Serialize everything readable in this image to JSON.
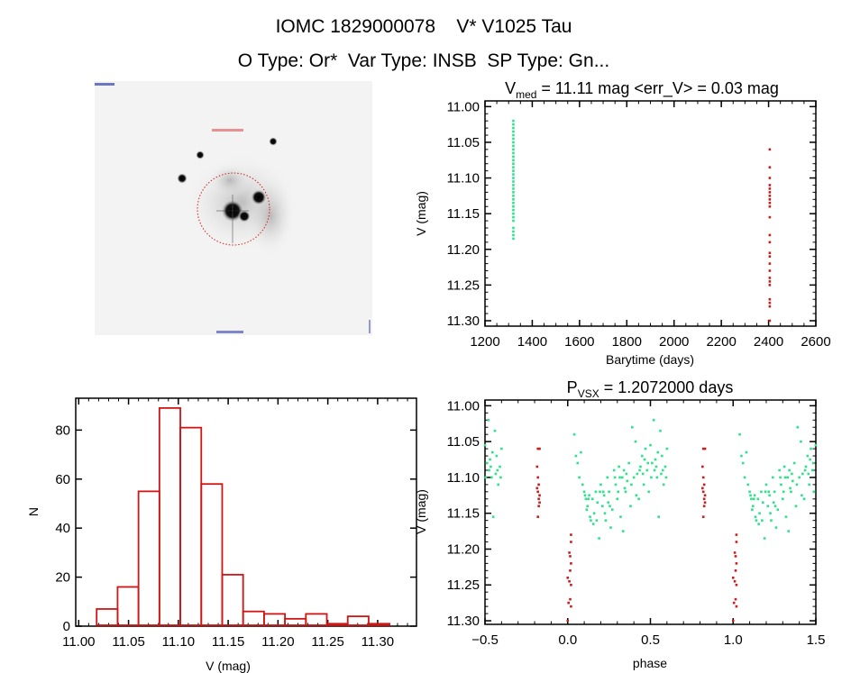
{
  "header": {
    "title": "IOMC 1829000078    V* V1025 Tau",
    "subtitle": "O Type: Or*  Var Type: INSB  SP Type: Gn..."
  },
  "colors": {
    "series_a": "#2de38a",
    "series_b": "#c81e1e",
    "histogram": "#d01515",
    "axes": "#000000"
  },
  "chart_data": [
    {
      "type": "scatter",
      "title_main": "V",
      "title_sub": "med",
      "title_rest": " = 11.11 mag <err_V> = 0.03 mag",
      "xlabel": "Barytime (days)",
      "ylabel": "V (mag)",
      "xlim": [
        1200,
        2600
      ],
      "ylim": [
        11.3,
        11.0
      ],
      "y_inverted": true,
      "xticks": [
        "1200",
        "1400",
        "1600",
        "1800",
        "2000",
        "2200",
        "2400",
        "2600"
      ],
      "yticks": [
        "11.00",
        "11.05",
        "11.10",
        "11.15",
        "11.20",
        "11.25",
        "11.30"
      ],
      "series": [
        {
          "color": "#2de38a",
          "barytime": 1320,
          "mag": [
            11.02,
            11.025,
            11.03,
            11.035,
            11.04,
            11.045,
            11.05,
            11.055,
            11.06,
            11.065,
            11.07,
            11.075,
            11.08,
            11.085,
            11.09,
            11.095,
            11.1,
            11.105,
            11.11,
            11.115,
            11.12,
            11.125,
            11.13,
            11.135,
            11.14,
            11.145,
            11.15,
            11.155,
            11.16,
            11.17,
            11.175,
            11.18,
            11.185
          ]
        },
        {
          "color": "#c81e1e",
          "barytime": 2405,
          "mag": [
            11.06,
            11.085,
            11.1,
            11.11,
            11.115,
            11.12,
            11.125,
            11.13,
            11.135,
            11.14,
            11.155,
            11.18,
            11.19,
            11.205,
            11.21,
            11.22,
            11.23,
            11.24,
            11.245,
            11.25,
            11.27,
            11.275,
            11.28,
            11.3
          ]
        }
      ]
    },
    {
      "type": "bar",
      "style": "histogram-outline",
      "xlabel": "V (mag)",
      "ylabel": "N",
      "xlim": [
        10.997,
        11.339
      ],
      "ylim": [
        0,
        93
      ],
      "xticks": [
        "11.00",
        "11.05",
        "11.10",
        "11.15",
        "11.20",
        "11.25",
        "11.30"
      ],
      "yticks": [
        "0",
        "20",
        "40",
        "60",
        "80"
      ],
      "bin_edges": [
        11.018,
        11.039,
        11.06,
        11.081,
        11.102,
        11.123,
        11.144,
        11.165,
        11.186,
        11.207,
        11.228,
        11.249,
        11.27,
        11.291,
        11.312
      ],
      "values": [
        7,
        16,
        55,
        89,
        81,
        58,
        21,
        6,
        5,
        3,
        5,
        1,
        4,
        1
      ]
    },
    {
      "type": "scatter",
      "title_main": "P",
      "title_sub": "VSX",
      "title_rest": " = 1.2072000 days",
      "xlabel": "phase",
      "ylabel": "V (mag)",
      "xlim": [
        -0.5,
        1.5
      ],
      "ylim": [
        11.3,
        11.0
      ],
      "y_inverted": true,
      "xticks": [
        "-0.5",
        "0.0",
        "0.5",
        "1.0",
        "1.5"
      ],
      "yticks": [
        "11.00",
        "11.05",
        "11.10",
        "11.15",
        "11.20",
        "11.25",
        "11.30"
      ],
      "series": [
        {
          "color": "#2de38a",
          "points": [
            [
              0.04,
              11.04
            ],
            [
              0.05,
              11.07
            ],
            [
              0.06,
              11.08
            ],
            [
              0.07,
              11.1
            ],
            [
              0.08,
              11.065
            ],
            [
              0.09,
              11.11
            ],
            [
              0.1,
              11.12
            ],
            [
              0.11,
              11.13
            ],
            [
              0.12,
              11.14
            ],
            [
              0.13,
              11.125
            ],
            [
              0.14,
              11.16
            ],
            [
              0.15,
              11.13
            ],
            [
              0.16,
              11.15
            ],
            [
              0.17,
              11.12
            ],
            [
              0.18,
              11.135
            ],
            [
              0.19,
              11.185
            ],
            [
              0.2,
              11.11
            ],
            [
              0.21,
              11.14
            ],
            [
              0.22,
              11.125
            ],
            [
              0.23,
              11.16
            ],
            [
              0.24,
              11.1
            ],
            [
              0.25,
              11.12
            ],
            [
              0.26,
              11.17
            ],
            [
              0.27,
              11.145
            ],
            [
              0.28,
              11.09
            ],
            [
              0.29,
              11.11
            ],
            [
              0.3,
              11.13
            ],
            [
              0.31,
              11.085
            ],
            [
              0.32,
              11.155
            ],
            [
              0.33,
              11.1
            ],
            [
              0.34,
              11.09
            ],
            [
              0.35,
              11.12
            ],
            [
              0.36,
              11.105
            ],
            [
              0.37,
              11.08
            ],
            [
              0.38,
              11.14
            ],
            [
              0.39,
              11.03
            ],
            [
              0.4,
              11.1
            ],
            [
              0.41,
              11.05
            ],
            [
              0.42,
              11.095
            ],
            [
              0.43,
              11.13
            ],
            [
              0.44,
              11.085
            ],
            [
              0.45,
              11.07
            ],
            [
              0.46,
              11.11
            ],
            [
              0.47,
              11.06
            ],
            [
              0.48,
              11.09
            ],
            [
              0.49,
              11.12
            ],
            [
              0.5,
              11.055
            ],
            [
              0.51,
              11.08
            ],
            [
              0.52,
              11.02
            ],
            [
              0.53,
              11.075
            ],
            [
              0.54,
              11.1
            ],
            [
              0.55,
              11.155
            ],
            [
              0.56,
              11.035
            ],
            [
              0.57,
              11.07
            ],
            [
              0.58,
              11.11
            ],
            [
              0.59,
              11.085
            ],
            [
              0.6,
              11.06
            ],
            [
              0.115,
              11.145
            ],
            [
              0.135,
              11.155
            ],
            [
              0.175,
              11.16
            ],
            [
              0.215,
              11.12
            ],
            [
              0.245,
              11.135
            ],
            [
              0.305,
              11.12
            ],
            [
              0.335,
              11.175
            ],
            [
              0.355,
              11.095
            ],
            [
              0.385,
              11.11
            ],
            [
              0.415,
              11.125
            ],
            [
              0.435,
              11.09
            ],
            [
              0.465,
              11.075
            ],
            [
              0.505,
              11.1
            ],
            [
              0.525,
              11.09
            ],
            [
              0.545,
              11.065
            ],
            [
              0.575,
              11.09
            ],
            [
              0.595,
              11.1
            ],
            [
              0.155,
              11.165
            ],
            [
              0.255,
              11.14
            ],
            [
              0.285,
              11.1
            ],
            [
              0.105,
              11.125
            ],
            [
              0.125,
              11.13
            ],
            [
              0.195,
              11.12
            ],
            [
              0.225,
              11.15
            ],
            [
              0.315,
              11.1
            ],
            [
              0.345,
              11.115
            ],
            [
              0.455,
              11.095
            ],
            [
              0.485,
              11.08
            ],
            [
              0.535,
              11.085
            ],
            [
              0.565,
              11.095
            ]
          ]
        },
        {
          "color": "#c81e1e",
          "points": [
            [
              0.82,
              11.06
            ],
            [
              0.83,
              11.06
            ],
            [
              0.815,
              11.085
            ],
            [
              0.82,
              11.1
            ],
            [
              0.825,
              11.11
            ],
            [
              0.82,
              11.12
            ],
            [
              0.83,
              11.125
            ],
            [
              0.825,
              11.13
            ],
            [
              0.815,
              11.115
            ],
            [
              0.83,
              11.135
            ],
            [
              0.825,
              11.14
            ],
            [
              0.82,
              11.155
            ],
            [
              0.02,
              11.18
            ],
            [
              0.02,
              11.19
            ],
            [
              0.01,
              11.205
            ],
            [
              0.015,
              11.21
            ],
            [
              0.02,
              11.22
            ],
            [
              0.015,
              11.23
            ],
            [
              0.0,
              11.24
            ],
            [
              0.01,
              11.245
            ],
            [
              0.02,
              11.25
            ],
            [
              0.015,
              11.27
            ],
            [
              0.005,
              11.275
            ],
            [
              0.02,
              11.28
            ],
            [
              0.0,
              11.3
            ]
          ]
        }
      ]
    }
  ]
}
